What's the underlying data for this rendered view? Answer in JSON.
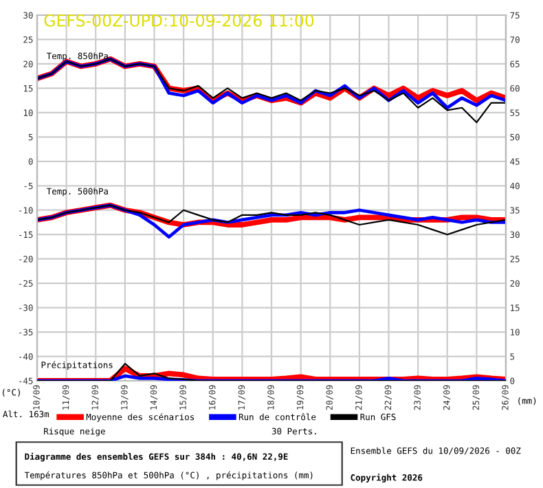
{
  "chart_data": {
    "type": "line",
    "title": "GEFS-00Z-UPD:10-09-2026 11:00",
    "x": [
      "2026-09-10T00:00",
      "2026-09-10T12:00",
      "2026-09-11T00:00",
      "2026-09-11T12:00",
      "2026-09-12T00:00",
      "2026-09-12T12:00",
      "2026-09-13T00:00",
      "2026-09-13T12:00",
      "2026-09-14T00:00",
      "2026-09-14T12:00",
      "2026-09-15T00:00",
      "2026-09-15T12:00",
      "2026-09-16T00:00",
      "2026-09-16T12:00",
      "2026-09-17T00:00",
      "2026-09-17T12:00",
      "2026-09-18T00:00",
      "2026-09-18T12:00",
      "2026-09-19T00:00",
      "2026-09-19T12:00",
      "2026-09-20T00:00",
      "2026-09-20T12:00",
      "2026-09-21T00:00",
      "2026-09-21T12:00",
      "2026-09-22T00:00",
      "2026-09-22T12:00",
      "2026-09-23T00:00",
      "2026-09-23T12:00",
      "2026-09-24T00:00",
      "2026-09-24T12:00",
      "2026-09-25T00:00",
      "2026-09-25T12:00",
      "2026-09-26T00:00"
    ],
    "xlim": [
      "2026-09-10",
      "2026-09-26"
    ],
    "xticks": [
      {
        "value": "2026-09-10",
        "label": "10/09"
      },
      {
        "value": "2026-09-11",
        "label": "11/09"
      },
      {
        "value": "2026-09-12",
        "label": "12/09"
      },
      {
        "value": "2026-09-13",
        "label": "13/09"
      },
      {
        "value": "2026-09-14",
        "label": "14/09"
      },
      {
        "value": "2026-09-15",
        "label": "15/09"
      },
      {
        "value": "2026-09-16",
        "label": "16/09"
      },
      {
        "value": "2026-09-17",
        "label": "17/09"
      },
      {
        "value": "2026-09-18",
        "label": "18/09"
      },
      {
        "value": "2026-09-19",
        "label": "19/09"
      },
      {
        "value": "2026-09-20",
        "label": "20/09"
      },
      {
        "value": "2026-09-21",
        "label": "21/09"
      },
      {
        "value": "2026-09-22",
        "label": "22/09"
      },
      {
        "value": "2026-09-23",
        "label": "23/09"
      },
      {
        "value": "2026-09-24",
        "label": "24/09"
      },
      {
        "value": "2026-09-25",
        "label": "25/09"
      },
      {
        "value": "2026-09-26",
        "label": "26/09"
      }
    ],
    "ylim": [
      -45,
      30
    ],
    "yticks": [
      -45,
      -40,
      -35,
      -30,
      -25,
      -20,
      -15,
      -10,
      -5,
      0,
      5,
      10,
      15,
      20,
      25,
      30
    ],
    "y2lim": [
      0,
      75
    ],
    "y2ticks": [
      0,
      5,
      10,
      15,
      20,
      25,
      30,
      35,
      40,
      45,
      50,
      55,
      60,
      65,
      70,
      75
    ],
    "ylabel": "(°C)",
    "y2label": "(mm)",
    "grid": true,
    "legend": "bottom",
    "marker": "none",
    "line_style": "solid",
    "series": [
      {
        "name": "Moyenne des scénarios",
        "color": "#ff0000",
        "values": [
          17,
          18,
          20.5,
          19.5,
          20,
          21,
          19.5,
          20,
          19.5,
          15,
          14.5,
          15,
          12.5,
          14,
          12.5,
          13.5,
          12.5,
          13,
          12,
          14,
          13,
          15,
          13,
          15,
          13.5,
          15,
          13,
          14.5,
          13.5,
          14.5,
          12.5,
          14,
          13
        ]
      },
      {
        "name": "Run de contrôle",
        "color": "#0000ff",
        "values": [
          17,
          18,
          20.5,
          19.5,
          20,
          21,
          19.5,
          20,
          19.5,
          14,
          13.5,
          14.5,
          12,
          14,
          12,
          13.5,
          12.5,
          13.5,
          12,
          14.5,
          13.5,
          15.5,
          13,
          15,
          12.5,
          14.5,
          12,
          14,
          11,
          13,
          11.5,
          13.5,
          12.5
        ]
      },
      {
        "name": "Run GFS",
        "color": "#000000",
        "values": [
          17,
          18,
          20.5,
          19.5,
          20,
          21,
          19.5,
          20,
          19.5,
          15,
          14.5,
          15.5,
          13,
          15,
          13,
          14,
          13,
          14,
          12.5,
          14.5,
          14,
          15,
          13.5,
          14.5,
          12.5,
          14,
          11,
          13,
          10.5,
          11,
          8,
          12,
          12
        ]
      },
      {
        "color": "#ff0000",
        "values": [
          -12,
          -11.5,
          -10.5,
          -10,
          -9.5,
          -9,
          -10,
          -10.5,
          -11.5,
          -12.5,
          -13,
          -12.5,
          -12.5,
          -13,
          -13,
          -12.5,
          -12,
          -12,
          -11.5,
          -11.5,
          -11.5,
          -12,
          -11.5,
          -11.5,
          -11.5,
          -12,
          -12,
          -12,
          -12,
          -11.5,
          -11.5,
          -12,
          -12
        ]
      },
      {
        "color": "#0000ff",
        "values": [
          -12,
          -11.5,
          -10.5,
          -10,
          -9.5,
          -9,
          -10,
          -11,
          -13,
          -15.5,
          -13,
          -12.5,
          -12,
          -12.5,
          -12,
          -11.5,
          -11,
          -11,
          -10.5,
          -11,
          -10.5,
          -10.5,
          -10,
          -10.5,
          -11,
          -11.5,
          -12,
          -11.5,
          -12,
          -12.5,
          -12,
          -12.5,
          -12.5
        ]
      },
      {
        "color": "#000000",
        "values": [
          -12,
          -11.5,
          -10.5,
          -10,
          -9.5,
          -9,
          -10,
          -10.5,
          -11.5,
          -12.5,
          -10,
          -11,
          -12,
          -12.5,
          -11,
          -11,
          -10.5,
          -11,
          -11,
          -10.5,
          -11,
          -12,
          -13,
          -12.5,
          -12,
          -12.5,
          -13,
          -14,
          -15,
          -14,
          -13,
          -12.5,
          -12
        ]
      },
      {
        "color": "#ff0000",
        "axis": "y2",
        "values": [
          0,
          0,
          0,
          0,
          0,
          0,
          2.5,
          1,
          1,
          1.5,
          1.2,
          0.5,
          0.3,
          0.3,
          0.3,
          0.3,
          0.3,
          0.5,
          0.8,
          0.3,
          0.3,
          0.3,
          0.3,
          0.3,
          0.3,
          0.3,
          0.5,
          0.3,
          0.3,
          0.5,
          0.8,
          0.5,
          0.3
        ]
      },
      {
        "color": "#0000ff",
        "axis": "y2",
        "values": [
          0,
          0,
          0,
          0,
          0,
          0,
          1,
          0.5,
          0.5,
          0.3,
          0.2,
          0,
          0,
          0,
          0,
          0,
          0,
          0,
          0,
          0,
          0,
          0,
          0,
          0,
          0.5,
          0,
          0,
          0,
          0,
          0,
          0.5,
          0.3,
          0
        ]
      },
      {
        "color": "#000000",
        "axis": "y2",
        "values": [
          0,
          0,
          0,
          0,
          0,
          0,
          3.5,
          1,
          1.5,
          0.5,
          0.3,
          0,
          0,
          0,
          0,
          0,
          0,
          0,
          0,
          0,
          0,
          0,
          0,
          0,
          0,
          0,
          0,
          0,
          0,
          0,
          0,
          0,
          0
        ]
      }
    ],
    "annotations": [
      "Temp. 850hPa",
      "Temp. 500hPa",
      "Précipitations",
      "Alt. 163m",
      "Risque neige",
      "30 Perts.",
      "Diagramme des ensembles GEFS sur 384h : 40,6N 22,9E",
      "Températures 850hPa et 500hPa (°C) , précipitations (mm)",
      "Ensemble GEFS du 10/09/2026 - 00Z",
      "Copyright 2026"
    ]
  }
}
